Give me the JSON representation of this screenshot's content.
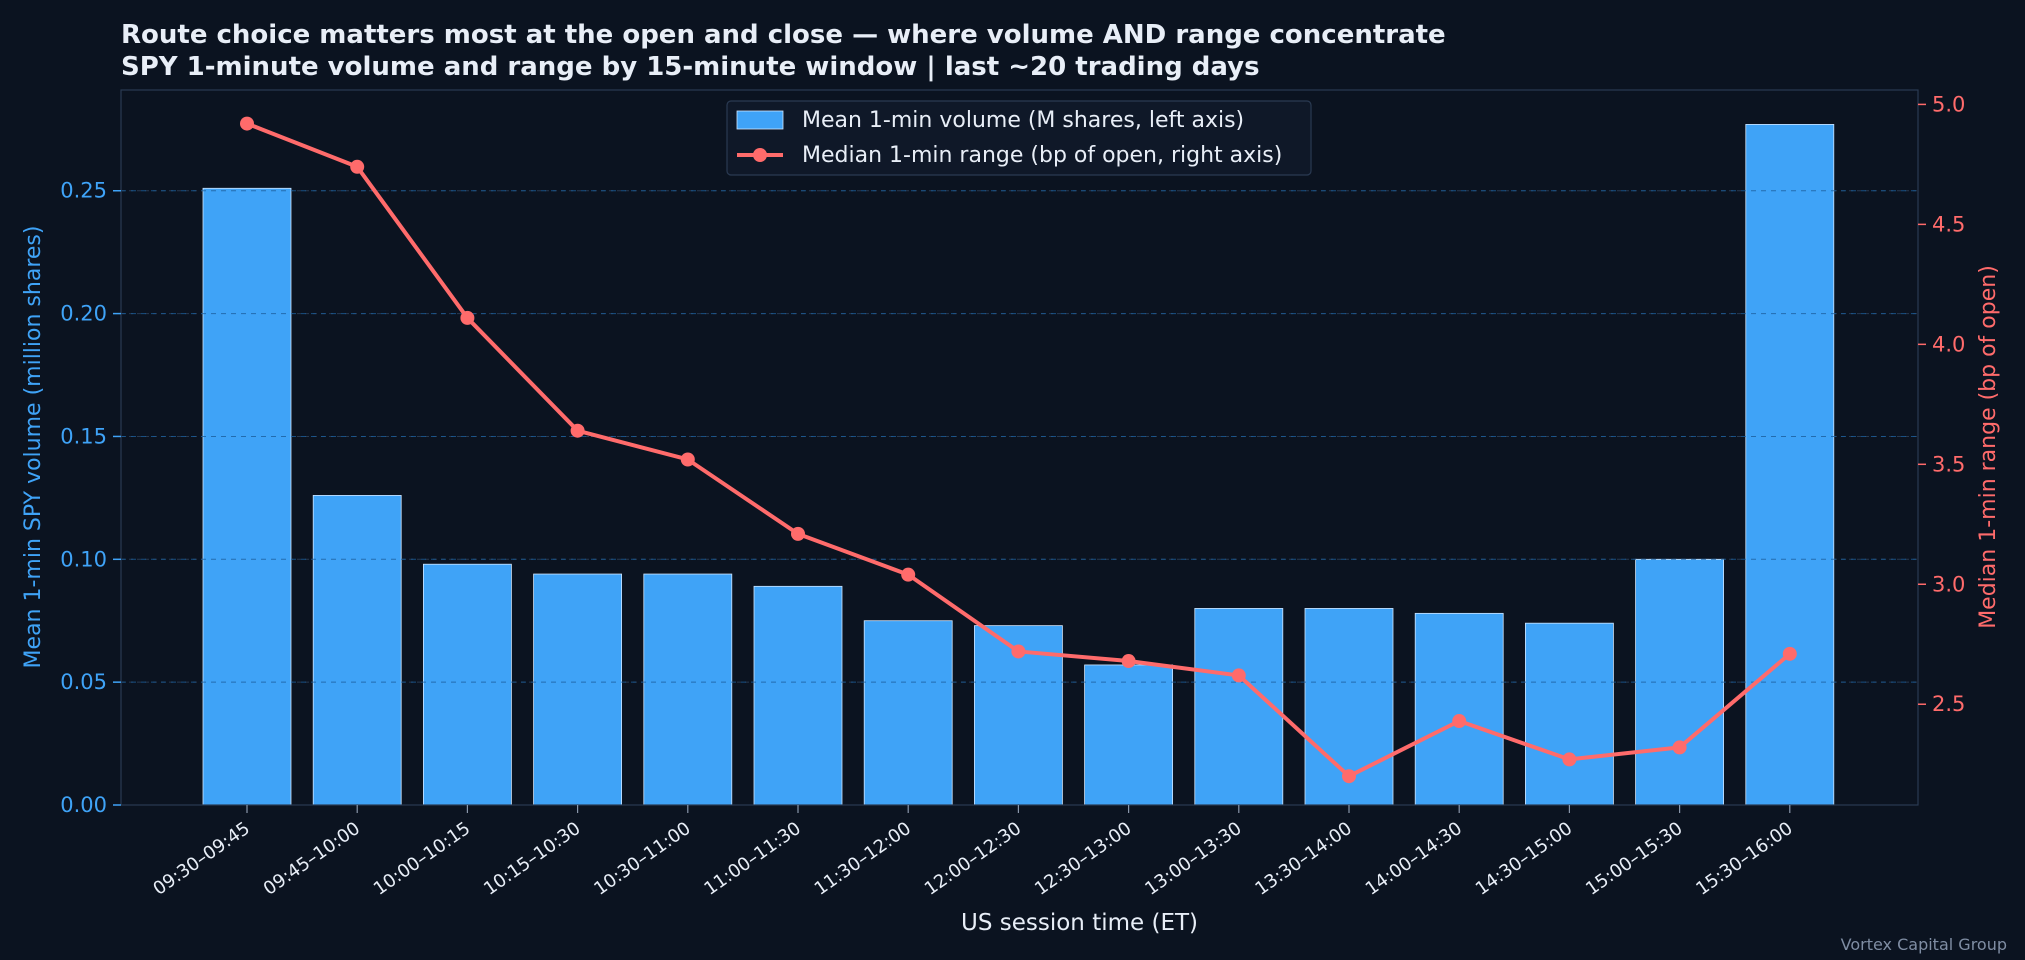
{
  "header": {
    "title": "Route choice matters most at the open and close — where volume AND range concentrate",
    "subtitle": "SPY 1-minute volume and range by 15-minute window  |  last ~20 trading days"
  },
  "watermark": "Vortex Capital Group",
  "colors": {
    "background": "#0b1320",
    "bar": "#3fa3f7",
    "line": "#ff6b6b",
    "text": "#e8eef7"
  },
  "chart_data": {
    "type": "bar",
    "title": "Route choice matters most at the open and close — where volume AND range concentrate",
    "subtitle": "SPY 1-minute volume and range by 15-minute window  |  last ~20 trading days",
    "xlabel": "US session time (ET)",
    "ylabel": "Mean 1-min SPY volume  (million shares)",
    "y2label": "Median 1-min range  (bp of open)",
    "categories": [
      "09:30–09:45",
      "09:45–10:00",
      "10:00–10:15",
      "10:15–10:30",
      "10:30–11:00",
      "11:00–11:30",
      "11:30–12:00",
      "12:00–12:30",
      "12:30–13:00",
      "13:00–13:30",
      "13:30–14:00",
      "14:00–14:30",
      "14:30–15:00",
      "15:00–15:30",
      "15:30–16:00"
    ],
    "series": [
      {
        "name": "Mean 1-min volume (M shares, left axis)",
        "type": "bar",
        "axis": "left",
        "values": [
          0.251,
          0.126,
          0.098,
          0.094,
          0.094,
          0.089,
          0.075,
          0.073,
          0.057,
          0.08,
          0.08,
          0.078,
          0.074,
          0.1,
          0.277
        ]
      },
      {
        "name": "Median 1-min range (bp of open, right axis)",
        "type": "line",
        "axis": "right",
        "values": [
          4.92,
          4.74,
          4.11,
          3.64,
          3.52,
          3.21,
          3.04,
          2.72,
          2.68,
          2.62,
          2.2,
          2.43,
          2.27,
          2.32,
          2.71
        ]
      }
    ],
    "ylim": [
      0,
      0.291
    ],
    "y2lim": [
      2.08,
      5.06
    ],
    "yticks": [
      "0.00",
      "0.05",
      "0.10",
      "0.15",
      "0.20",
      "0.25"
    ],
    "y2ticks": [
      "2.5",
      "3.0",
      "3.5",
      "4.0",
      "4.5",
      "5.0"
    ],
    "grid": "horizontal dashed",
    "legend": "top-center"
  }
}
